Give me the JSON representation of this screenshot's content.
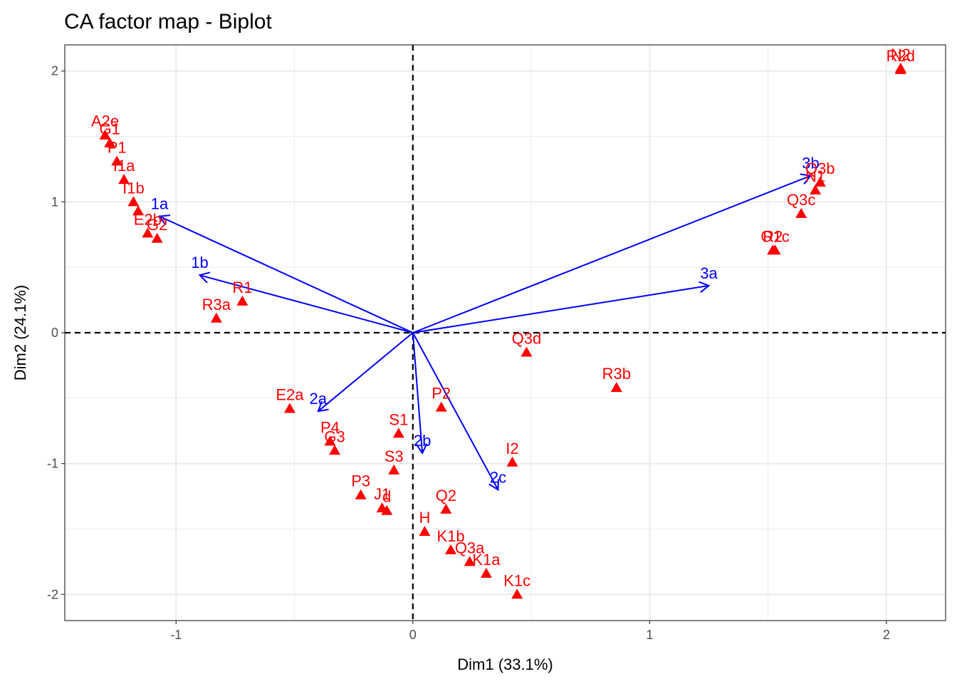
{
  "chart_data": {
    "type": "scatter",
    "title": "CA factor map - Biplot",
    "xlabel": "Dim1 (33.1%)",
    "ylabel": "Dim2 (24.1%)",
    "xlim": [
      -1.47,
      2.25
    ],
    "ylim": [
      -2.2,
      2.2
    ],
    "x_ticks": [
      -1,
      0,
      1,
      2
    ],
    "y_ticks": [
      -2,
      -1,
      0,
      1,
      2
    ],
    "x_tick_labels": [
      "-1",
      "0",
      "1",
      "2"
    ],
    "y_tick_labels": [
      "-2",
      "-1",
      "0",
      "1",
      "2"
    ],
    "grid": true,
    "reference_lines": [
      0,
      0
    ],
    "colors": {
      "rows": "#ff0000",
      "columns": "#0000ff",
      "grid": "#ebebeb",
      "border": "#333333"
    },
    "row_points": [
      {
        "label": "A2e",
        "x": -1.3,
        "y": 1.51
      },
      {
        "label": "G1",
        "x": -1.28,
        "y": 1.45
      },
      {
        "label": "P1",
        "x": -1.25,
        "y": 1.31
      },
      {
        "label": "I1a",
        "x": -1.22,
        "y": 1.17
      },
      {
        "label": "I1b",
        "x": -1.18,
        "y": 1.0
      },
      {
        "label": "",
        "x": -1.16,
        "y": 0.93
      },
      {
        "label": "E2b",
        "x": -1.12,
        "y": 0.76
      },
      {
        "label": "G2",
        "x": -1.08,
        "y": 0.72
      },
      {
        "label": "R1",
        "x": -0.72,
        "y": 0.24
      },
      {
        "label": "R3a",
        "x": -0.83,
        "y": 0.11
      },
      {
        "label": "Q3d",
        "x": 0.48,
        "y": -0.15
      },
      {
        "label": "R3b",
        "x": 0.86,
        "y": -0.42
      },
      {
        "label": "E2a",
        "x": -0.52,
        "y": -0.58
      },
      {
        "label": "P2",
        "x": 0.12,
        "y": -0.57
      },
      {
        "label": "S1",
        "x": -0.06,
        "y": -0.77
      },
      {
        "label": "P4",
        "x": -0.35,
        "y": -0.83
      },
      {
        "label": "G3",
        "x": -0.33,
        "y": -0.9
      },
      {
        "label": "I2",
        "x": 0.42,
        "y": -0.99
      },
      {
        "label": "S3",
        "x": -0.08,
        "y": -1.05
      },
      {
        "label": "P3",
        "x": -0.22,
        "y": -1.24
      },
      {
        "label": "J1",
        "x": -0.13,
        "y": -1.34
      },
      {
        "label": "d",
        "x": -0.11,
        "y": -1.36
      },
      {
        "label": "Q2",
        "x": 0.14,
        "y": -1.35
      },
      {
        "label": "H",
        "x": 0.05,
        "y": -1.52
      },
      {
        "label": "K1b",
        "x": 0.16,
        "y": -1.66
      },
      {
        "label": "Q3a",
        "x": 0.24,
        "y": -1.75
      },
      {
        "label": "K1a",
        "x": 0.31,
        "y": -1.84
      },
      {
        "label": "K1c",
        "x": 0.44,
        "y": -2.0
      },
      {
        "label": "N1",
        "x": 1.7,
        "y": 1.09
      },
      {
        "label": "Q3b",
        "x": 1.72,
        "y": 1.15
      },
      {
        "label": "Q3c",
        "x": 1.64,
        "y": 0.91
      },
      {
        "label": "R2",
        "x": 1.52,
        "y": 0.63
      },
      {
        "label": "O1c",
        "x": 1.53,
        "y": 0.63
      },
      {
        "label": "N2",
        "x": 2.06,
        "y": 2.02
      },
      {
        "label": "R2d",
        "x": 2.06,
        "y": 2.01
      }
    ],
    "column_arrows": [
      {
        "label": "1a",
        "x": -1.07,
        "y": 0.89
      },
      {
        "label": "1b",
        "x": -0.9,
        "y": 0.44
      },
      {
        "label": "2a",
        "x": -0.4,
        "y": -0.6
      },
      {
        "label": "2b",
        "x": 0.04,
        "y": -0.92
      },
      {
        "label": "2c",
        "x": 0.36,
        "y": -1.2
      },
      {
        "label": "3a",
        "x": 1.25,
        "y": 0.36
      },
      {
        "label": "3b",
        "x": 1.68,
        "y": 1.2
      }
    ]
  }
}
